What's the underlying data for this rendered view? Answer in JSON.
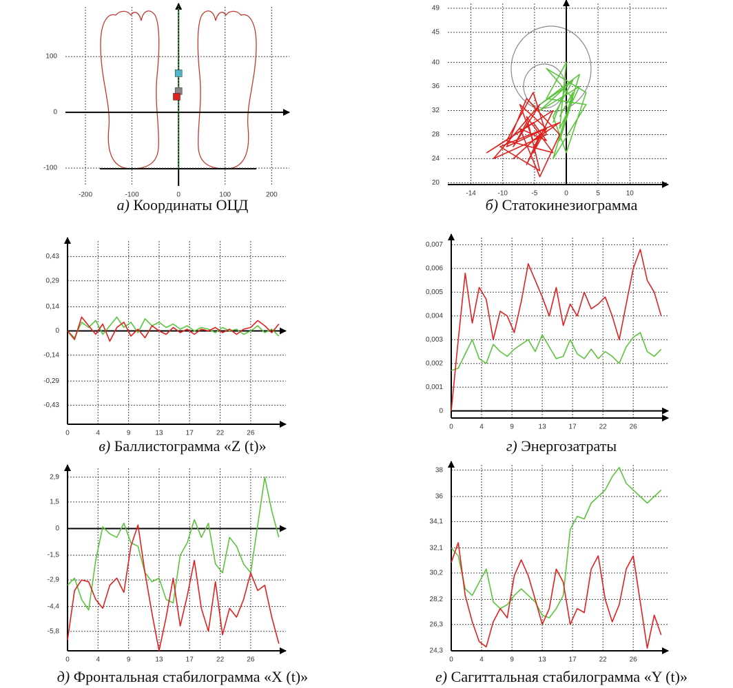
{
  "chart_data": [
    {
      "type": "scatter",
      "label": "а)",
      "caption": "Координаты ОЦД",
      "xlim": [
        -243,
        238
      ],
      "ylim": [
        -132,
        189
      ],
      "xticks": [
        -200,
        -100,
        0,
        100,
        200
      ],
      "yticks": [
        -100,
        0,
        100
      ],
      "grid": true,
      "series": [
        {
          "mode": "line",
          "color": "#2e9e3a",
          "x": [
            0,
            0
          ],
          "values": [
            -100,
            190
          ]
        },
        {
          "mode": "markers",
          "color": "#4fb8c8",
          "x": [
            0
          ],
          "values": [
            70
          ]
        },
        {
          "mode": "markers",
          "color": "#888888",
          "x": [
            0
          ],
          "values": [
            38
          ]
        },
        {
          "mode": "markers",
          "color": "#e0201c",
          "x": [
            -4
          ],
          "values": [
            28
          ]
        }
      ]
    },
    {
      "type": "scatter",
      "label": "б)",
      "caption": "Статокинезиограмма",
      "xlim": [
        -17.9,
        15.4
      ],
      "ylim": [
        19.7,
        49.8
      ],
      "xticks": [
        {
          "value": -14.4,
          "label": "-14"
        },
        {
          "value": -9.6,
          "label": "-10"
        },
        {
          "value": -4.8,
          "label": "-5"
        },
        0,
        {
          "value": 4.8,
          "label": "5"
        },
        {
          "value": 9.6,
          "label": "10"
        }
      ],
      "yticks": [
        20,
        24,
        28,
        32,
        36,
        40,
        45,
        49
      ],
      "grid": true,
      "series": [
        {
          "mode": "line",
          "color": "#5cc43c",
          "x": [
            -2,
            0,
            -4,
            2,
            -1,
            1,
            -3,
            3,
            0,
            -2,
            1,
            -4,
            2,
            -1,
            0,
            -3,
            3,
            -2,
            1,
            -1
          ],
          "values": [
            30,
            36,
            33,
            38,
            27,
            34,
            39,
            35,
            25,
            31,
            37,
            32,
            36,
            29,
            40,
            34,
            33,
            24,
            35,
            31
          ]
        },
        {
          "mode": "line",
          "color": "#e0201c",
          "x": [
            -6,
            -8,
            -4,
            -11,
            -3,
            -5,
            -9,
            -2,
            -6,
            -4,
            -10,
            -1,
            -5,
            -7,
            -3,
            -8,
            -4,
            -6,
            -2,
            -12,
            -5,
            -3,
            -7,
            -4,
            -1,
            -6,
            -9,
            -3,
            -5,
            -4
          ],
          "values": [
            30,
            26,
            33,
            24,
            28,
            35,
            27,
            25,
            31,
            22,
            26,
            30,
            27,
            33,
            29,
            24,
            28,
            23,
            32,
            25,
            30,
            27,
            29,
            21,
            28,
            34,
            26,
            29,
            25,
            28
          ]
        }
      ]
    },
    {
      "type": "line",
      "label": "в)",
      "caption": "Баллистограмма «Z (t)»",
      "xlim": [
        0,
        31
      ],
      "ylim": [
        -0.54,
        0.52
      ],
      "xticks": [
        0,
        {
          "value": 4.33,
          "label": "4"
        },
        {
          "value": 8.67,
          "label": "9"
        },
        13,
        {
          "value": 17.33,
          "label": "17"
        },
        {
          "value": 21.67,
          "label": "22"
        },
        26
      ],
      "yticks": [
        {
          "value": 0.43,
          "label": "0,43"
        },
        {
          "value": 0.29,
          "label": "0,29"
        },
        {
          "value": 0.14,
          "label": "0,14"
        },
        0,
        {
          "value": -0.14,
          "label": "-0,14"
        },
        {
          "value": -0.29,
          "label": "-0,29"
        },
        {
          "value": -0.43,
          "label": "-0,43"
        }
      ],
      "grid": true,
      "x": [
        0,
        1,
        2,
        3,
        4,
        5,
        6,
        7,
        8,
        9,
        10,
        11,
        12,
        13,
        14,
        15,
        16,
        17,
        18,
        19,
        20,
        21,
        22,
        23,
        24,
        25,
        26,
        27,
        28,
        29,
        30
      ],
      "series": [
        {
          "color": "#5cc43c",
          "values": [
            0,
            -0.04,
            0.05,
            0.02,
            0.06,
            -0.02,
            0.03,
            0.08,
            0.02,
            0.05,
            -0.01,
            0.07,
            0.03,
            0.05,
            0.02,
            0.04,
            0.01,
            0.03,
            0.0,
            0.02,
            0.01,
            -0.01,
            0.02,
            0.0,
            0.01,
            -0.02,
            0.0,
            0.03,
            -0.01,
            0.01,
            -0.03
          ]
        },
        {
          "color": "#e0201c",
          "values": [
            0,
            -0.05,
            0.08,
            0.03,
            -0.02,
            0.04,
            -0.06,
            0.02,
            0.05,
            -0.03,
            0.01,
            -0.04,
            0.03,
            0.0,
            -0.02,
            0.02,
            -0.01,
            0.01,
            -0.02,
            0.01,
            0.0,
            0.02,
            -0.01,
            0.01,
            -0.02,
            0.01,
            0.02,
            0.06,
            0.03,
            -0.01,
            0.04
          ]
        }
      ]
    },
    {
      "type": "line",
      "label": "г)",
      "caption": "Энергозатраты",
      "xlim": [
        0,
        31
      ],
      "ylim": [
        -0.0003,
        0.0073
      ],
      "xticks": [
        0,
        {
          "value": 4.33,
          "label": "4"
        },
        {
          "value": 8.67,
          "label": "9"
        },
        13,
        {
          "value": 17.33,
          "label": "17"
        },
        {
          "value": 21.67,
          "label": "22"
        },
        26
      ],
      "yticks": [
        0,
        {
          "value": 0.001,
          "label": "0,001"
        },
        {
          "value": 0.002,
          "label": "0,002"
        },
        {
          "value": 0.003,
          "label": "0,003"
        },
        {
          "value": 0.004,
          "label": "0,004"
        },
        {
          "value": 0.005,
          "label": "0,005"
        },
        {
          "value": 0.006,
          "label": "0,006"
        },
        {
          "value": 0.007,
          "label": "0,007"
        }
      ],
      "grid": true,
      "x": [
        0,
        1,
        2,
        3,
        4,
        5,
        6,
        7,
        8,
        9,
        10,
        11,
        12,
        13,
        14,
        15,
        16,
        17,
        18,
        19,
        20,
        21,
        22,
        23,
        24,
        25,
        26,
        27,
        28,
        29,
        30
      ],
      "series": [
        {
          "color": "#5cc43c",
          "values": [
            0.0017,
            0.0018,
            0.0024,
            0.003,
            0.0022,
            0.002,
            0.0028,
            0.0025,
            0.0023,
            0.0026,
            0.0028,
            0.003,
            0.0025,
            0.0032,
            0.0027,
            0.0022,
            0.0023,
            0.003,
            0.0024,
            0.0022,
            0.0026,
            0.0022,
            0.0025,
            0.0023,
            0.002,
            0.0027,
            0.0031,
            0.0033,
            0.0025,
            0.0023,
            0.0026
          ]
        },
        {
          "color": "#e0201c",
          "values": [
            0,
            0.003,
            0.0058,
            0.0037,
            0.0052,
            0.0047,
            0.003,
            0.0042,
            0.004,
            0.0033,
            0.0046,
            0.0062,
            0.0055,
            0.0048,
            0.004,
            0.0052,
            0.0036,
            0.0045,
            0.004,
            0.005,
            0.0043,
            0.0045,
            0.0048,
            0.004,
            0.003,
            0.0045,
            0.006,
            0.0068,
            0.0055,
            0.005,
            0.004
          ]
        }
      ]
    },
    {
      "type": "line",
      "label": "д)",
      "caption": "Фронтальная стабилограмма «X (t)»",
      "xlim": [
        0,
        31
      ],
      "ylim": [
        -6.9,
        3.4
      ],
      "xticks": [
        0,
        {
          "value": 4.33,
          "label": "4"
        },
        {
          "value": 8.67,
          "label": "9"
        },
        13,
        {
          "value": 17.33,
          "label": "17"
        },
        {
          "value": 21.67,
          "label": "22"
        },
        26
      ],
      "yticks": [
        {
          "value": 2.9,
          "label": "2,9"
        },
        {
          "value": 1.5,
          "label": "1,5"
        },
        0,
        {
          "value": -1.5,
          "label": "-1,5"
        },
        {
          "value": -2.9,
          "label": "-2,9"
        },
        {
          "value": -4.4,
          "label": "-4,4"
        },
        {
          "value": -5.8,
          "label": "-5,8"
        }
      ],
      "grid": true,
      "x": [
        0,
        1,
        2,
        3,
        4,
        5,
        6,
        7,
        8,
        9,
        10,
        11,
        12,
        13,
        14,
        15,
        16,
        17,
        18,
        19,
        20,
        21,
        22,
        23,
        24,
        25,
        26,
        27,
        28,
        29,
        30
      ],
      "series": [
        {
          "color": "#5cc43c",
          "values": [
            -3.2,
            -2.8,
            -4.0,
            -4.6,
            -1.8,
            0.1,
            -0.3,
            -0.5,
            0.3,
            -0.8,
            -1.0,
            -2.5,
            -3.0,
            -2.8,
            -4.0,
            -4.2,
            -1.5,
            -0.8,
            0.5,
            -0.5,
            0.3,
            -2.0,
            -2.5,
            -0.5,
            -1.0,
            -2.0,
            -2.5,
            0.2,
            2.9,
            1.0,
            -0.5
          ]
        },
        {
          "color": "#e0201c",
          "values": [
            -6.3,
            -3.5,
            -2.9,
            -3.0,
            -4.0,
            -4.5,
            -3.2,
            -2.8,
            -3.6,
            -1.0,
            0.2,
            -2.5,
            -4.8,
            -6.9,
            -5.0,
            -2.8,
            -5.5,
            -3.8,
            -1.8,
            -4.5,
            -5.8,
            -3.0,
            -6.0,
            -4.5,
            -5.0,
            -4.0,
            -2.5,
            -3.5,
            -3.2,
            -5.0,
            -6.5
          ]
        }
      ]
    },
    {
      "type": "line",
      "label": "е)",
      "caption": "Сагиттальная стабилограмма «Y (t)»",
      "xlim": [
        0,
        31
      ],
      "ylim": [
        24.3,
        38.4
      ],
      "xticks": [
        0,
        {
          "value": 4.33,
          "label": "4"
        },
        {
          "value": 8.67,
          "label": "9"
        },
        13,
        {
          "value": 17.33,
          "label": "17"
        },
        {
          "value": 21.67,
          "label": "22"
        },
        26
      ],
      "yticks": [
        {
          "value": 24.3,
          "label": "24,3"
        },
        {
          "value": 26.3,
          "label": "26,3"
        },
        {
          "value": 28.2,
          "label": "28,2"
        },
        {
          "value": 30.2,
          "label": "30,2"
        },
        {
          "value": 32.1,
          "label": "32,1"
        },
        {
          "value": 34.1,
          "label": "34,1"
        },
        36,
        38
      ],
      "grid": true,
      "x": [
        0,
        1,
        2,
        3,
        4,
        5,
        6,
        7,
        8,
        9,
        10,
        11,
        12,
        13,
        14,
        15,
        16,
        17,
        18,
        19,
        20,
        21,
        22,
        23,
        24,
        25,
        26,
        27,
        28,
        29,
        30
      ],
      "series": [
        {
          "color": "#5cc43c",
          "values": [
            32.1,
            31.5,
            29,
            28.5,
            29.5,
            30.5,
            28,
            27.5,
            27.8,
            28.5,
            29,
            28.5,
            28,
            27,
            26.8,
            27.5,
            28.5,
            33.5,
            34.5,
            34.3,
            35.5,
            36,
            36.5,
            37.5,
            38.2,
            37,
            36.5,
            36,
            35.5,
            36,
            36.5
          ]
        },
        {
          "color": "#e0201c",
          "values": [
            31,
            32.5,
            28.5,
            26.5,
            25,
            24.6,
            26.5,
            27.5,
            26.8,
            30,
            31.2,
            30,
            28.2,
            26.3,
            27.5,
            30.5,
            29.5,
            26.3,
            27.5,
            27.2,
            30.5,
            31.5,
            28.2,
            26.5,
            27.8,
            30.5,
            31.5,
            28,
            24.5,
            27,
            25.5
          ]
        }
      ]
    }
  ]
}
